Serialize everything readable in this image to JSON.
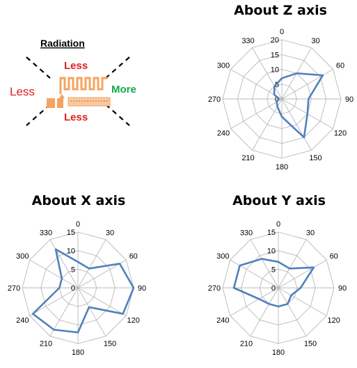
{
  "diagram": {
    "title": "Radiation",
    "top_label": "Less",
    "bottom_label": "Less",
    "left_label": "Less",
    "right_label": "More",
    "colors": {
      "less": "#e02020",
      "more": "#12a84a",
      "antenna": "#f4a460"
    }
  },
  "chart_data": [
    {
      "type": "radar",
      "title": "About Z axis",
      "angles": [
        0,
        30,
        60,
        90,
        120,
        150,
        180,
        210,
        240,
        270,
        300,
        330
      ],
      "angle_labels": [
        "0",
        "30",
        "60",
        "90",
        "120",
        "150",
        "180",
        "210",
        "240",
        "270",
        "300",
        "330"
      ],
      "radial_ticks": [
        "0",
        "5",
        "10",
        "15",
        "20"
      ],
      "rmax": 20,
      "values": [
        7,
        10,
        16,
        9,
        10,
        15,
        6,
        3,
        2,
        1,
        3,
        5
      ],
      "series_color": "#4f81bd"
    },
    {
      "type": "radar",
      "title": "About X axis",
      "angles": [
        0,
        30,
        60,
        90,
        120,
        150,
        180,
        210,
        240,
        270,
        300,
        330
      ],
      "angle_labels": [
        "0",
        "30",
        "60",
        "90",
        "120",
        "150",
        "180",
        "210",
        "240",
        "270",
        "300",
        "330"
      ],
      "radial_ticks": [
        "0",
        "5",
        "10",
        "15"
      ],
      "rmax": 15,
      "values": [
        7,
        6,
        13,
        15,
        14,
        6,
        12,
        13,
        14,
        5,
        5,
        12
      ],
      "series_color": "#4f81bd"
    },
    {
      "type": "radar",
      "title": "About Y axis",
      "angles": [
        0,
        30,
        60,
        90,
        120,
        150,
        180,
        210,
        240,
        270,
        300,
        330
      ],
      "angle_labels": [
        "0",
        "30",
        "60",
        "90",
        "120",
        "150",
        "180",
        "210",
        "240",
        "270",
        "300",
        "330"
      ],
      "radial_ticks": [
        "0",
        "5",
        "10",
        "15"
      ],
      "rmax": 15,
      "values": [
        7,
        6,
        11,
        6,
        4,
        5,
        5,
        5,
        6,
        12,
        12,
        9
      ],
      "series_color": "#4f81bd"
    }
  ]
}
